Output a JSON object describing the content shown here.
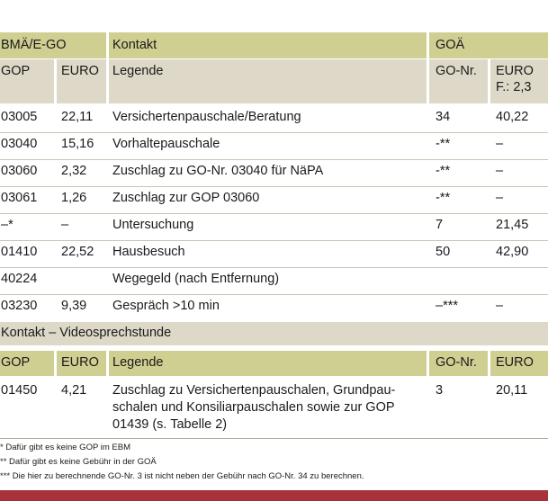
{
  "header": {
    "col_bmae": "BMÄ/E-GO",
    "col_kontakt": "Kontakt",
    "col_goae": "GOÄ"
  },
  "subheader": {
    "gop": "GOP",
    "euro": "EURO",
    "legende": "Legende",
    "go_nr": "GO-Nr.",
    "euro_f_line1": "EURO",
    "euro_f_line2": "F.: 2,3"
  },
  "rows": [
    {
      "gop": "03005",
      "euro": "22,11",
      "legende": "Versichertenpauschale/Beratung",
      "go_nr": "34",
      "go_euro": "40,22"
    },
    {
      "gop": "03040",
      "euro": "15,16",
      "legende": "Vorhaltepauschale",
      "go_nr": "-**",
      "go_euro": "–"
    },
    {
      "gop": "03060",
      "euro": "2,32",
      "legende": "Zuschlag zu GO-Nr. 03040 für NäPA",
      "go_nr": "-**",
      "go_euro": "–"
    },
    {
      "gop": "03061",
      "euro": "1,26",
      "legende": "Zuschlag zur GOP 03060",
      "go_nr": "-**",
      "go_euro": "–"
    },
    {
      "gop": "–*",
      "euro": "–",
      "legende": "Untersuchung",
      "go_nr": "7",
      "go_euro": "21,45"
    },
    {
      "gop": "01410",
      "euro": "22,52",
      "legende": "Hausbesuch",
      "go_nr": "50",
      "go_euro": "42,90"
    },
    {
      "gop": "40224",
      "euro": "",
      "legende": "Wegegeld (nach Entfernung)",
      "go_nr": "",
      "go_euro": ""
    },
    {
      "gop": "03230",
      "euro": "9,39",
      "legende": "Gespräch >10 min",
      "go_nr": "–***",
      "go_euro": "–"
    }
  ],
  "video_section": {
    "title": "Kontakt – Videosprechstunde",
    "gop": "GOP",
    "euro": "EURO",
    "legende": "Legende",
    "go_nr": "GO-Nr.",
    "go_euro": "EURO",
    "row": {
      "gop": "01450",
      "euro": "4,21",
      "legende_line1": "Zuschlag zu Versichertenpauschalen, Grundpau-",
      "legende_line2": "schalen und Konsiliarpauschalen sowie zur GOP",
      "legende_line3": "01439 (s. Tabelle 2)",
      "go_nr": "3",
      "go_euro": "20,11"
    }
  },
  "footnotes": [
    "*   Dafür gibt es keine GOP im EBM",
    "**   Dafür gibt es keine Gebühr in der GOÄ",
    "*** Die hier zu berechnende GO-Nr. 3 ist nicht neben der Gebühr nach GO-Nr. 34 zu berechnen."
  ],
  "colors": {
    "olive": "#cfcf92",
    "beige": "#ddd8c7",
    "red": "#a8323a"
  }
}
